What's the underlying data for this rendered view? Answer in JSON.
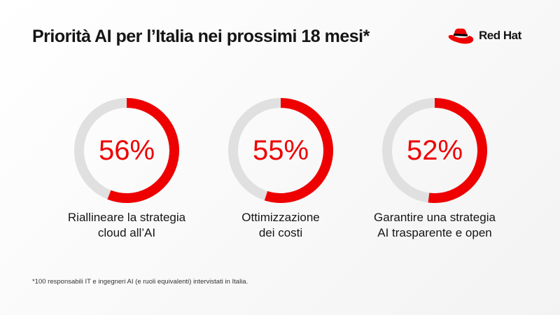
{
  "title": "Priorità AI per l’Italia nei prossimi 18 mesi*",
  "logo": {
    "text": "Red Hat",
    "icon": "red-hat-fedora-icon"
  },
  "colors": {
    "accent": "#ee0000",
    "track": "#e0e0e0",
    "text": "#151515"
  },
  "chart_data": {
    "type": "donut",
    "title": "Priorità AI per l’Italia nei prossimi 18 mesi*",
    "items": [
      {
        "value": 56,
        "value_label": "56%",
        "label_lines": [
          "Riallineare la strategia",
          "cloud all’AI"
        ]
      },
      {
        "value": 55,
        "value_label": "55%",
        "label_lines": [
          "Ottimizzazione",
          "dei costi"
        ]
      },
      {
        "value": 52,
        "value_label": "52%",
        "label_lines": [
          "Garantire una strategia",
          "AI trasparente e open"
        ]
      }
    ]
  },
  "footnote": "*100 responsabili IT e ingegneri AI (e ruoli equivalenti) intervistati in Italia."
}
